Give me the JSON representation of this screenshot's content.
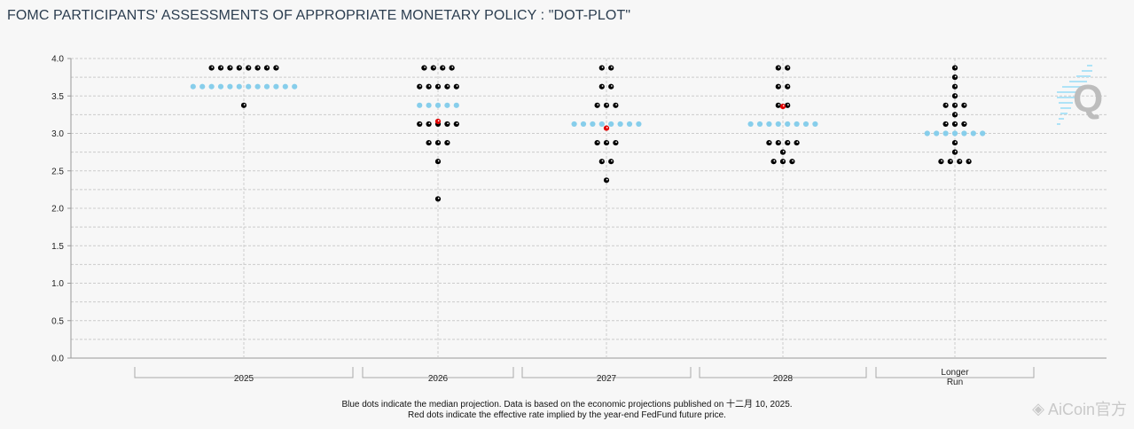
{
  "title": "FOMC PARTICIPANTS' ASSESSMENTS OF APPROPRIATE MONETARY POLICY : \"DOT-PLOT\"",
  "footnote": {
    "line1": "Blue dots indicate the median projection. Data is based on the economic projections published on 十二月 10, 2025.",
    "line2": "Red dots indicate the effective rate implied by the year-end FedFund future price."
  },
  "watermark": "AiCoin官方",
  "logo_letter": "Q",
  "colors": {
    "dot": "#000000",
    "median": "#87ceeb",
    "market": "#e00000",
    "grid": "#cccccc",
    "background": "#f7f7f7"
  },
  "chart_data": {
    "type": "scatter",
    "ylim": [
      0,
      4
    ],
    "yticks": [
      "0.0",
      "0.5",
      "1.0",
      "1.5",
      "2.0",
      "2.5",
      "3.0",
      "3.5",
      "4.0"
    ],
    "grid": true,
    "categories": [
      {
        "label": [
          "2025"
        ],
        "dots": [
          {
            "y": 3.875,
            "n": 8
          },
          {
            "y": 3.625,
            "n": 12,
            "median": true
          },
          {
            "y": 3.375,
            "n": 1
          }
        ],
        "market": null
      },
      {
        "label": [
          "2026"
        ],
        "dots": [
          {
            "y": 3.875,
            "n": 4
          },
          {
            "y": 3.625,
            "n": 5
          },
          {
            "y": 3.375,
            "n": 5,
            "median": true
          },
          {
            "y": 3.125,
            "n": 5
          },
          {
            "y": 2.875,
            "n": 3
          },
          {
            "y": 2.625,
            "n": 1
          },
          {
            "y": 2.125,
            "n": 1
          }
        ],
        "market": 3.16
      },
      {
        "label": [
          "2027"
        ],
        "dots": [
          {
            "y": 3.875,
            "n": 2
          },
          {
            "y": 3.625,
            "n": 2
          },
          {
            "y": 3.375,
            "n": 3
          },
          {
            "y": 3.125,
            "n": 8,
            "median": true
          },
          {
            "y": 2.875,
            "n": 3
          },
          {
            "y": 2.625,
            "n": 2
          },
          {
            "y": 2.375,
            "n": 1
          }
        ],
        "market": 3.07
      },
      {
        "label": [
          "2028"
        ],
        "dots": [
          {
            "y": 3.875,
            "n": 2
          },
          {
            "y": 3.625,
            "n": 2
          },
          {
            "y": 3.375,
            "n": 2
          },
          {
            "y": 3.125,
            "n": 8,
            "median": true
          },
          {
            "y": 2.875,
            "n": 4
          },
          {
            "y": 2.75,
            "n": 1
          },
          {
            "y": 2.625,
            "n": 3
          }
        ],
        "market": 3.36
      },
      {
        "label": [
          "Longer",
          "Run"
        ],
        "dots": [
          {
            "y": 3.875,
            "n": 1
          },
          {
            "y": 3.75,
            "n": 1
          },
          {
            "y": 3.625,
            "n": 1
          },
          {
            "y": 3.5,
            "n": 1
          },
          {
            "y": 3.375,
            "n": 3
          },
          {
            "y": 3.25,
            "n": 1
          },
          {
            "y": 3.125,
            "n": 3
          },
          {
            "y": 3.0,
            "n": 7,
            "median": true
          },
          {
            "y": 2.875,
            "n": 1
          },
          {
            "y": 2.75,
            "n": 1
          },
          {
            "y": 2.625,
            "n": 4
          }
        ],
        "market": null
      }
    ]
  }
}
